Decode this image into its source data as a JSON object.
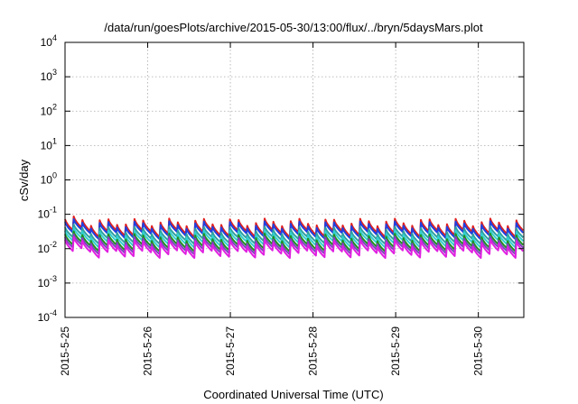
{
  "chart_data": {
    "type": "line",
    "title": "/data/run/goesPlots/archive/2015-05-30/13:00/flux/../bryn/5daysMars.plot",
    "xlabel": "Coordinated Universal Time (UTC)",
    "ylabel": "cSv/day",
    "yscale": "log",
    "ylim": [
      0.0001,
      10000
    ],
    "xlim": [
      0,
      5.55
    ],
    "x_ticks": [
      {
        "label": "2015-5-25",
        "value": 0
      },
      {
        "label": "2015-5-26",
        "value": 1
      },
      {
        "label": "2015-5-27",
        "value": 2
      },
      {
        "label": "2015-5-28",
        "value": 3
      },
      {
        "label": "2015-5-29",
        "value": 4
      },
      {
        "label": "2015-5-30",
        "value": 5
      }
    ],
    "y_ticks": [
      {
        "base": "10",
        "exp": "-4",
        "value": 0.0001
      },
      {
        "base": "10",
        "exp": "-3",
        "value": 0.001
      },
      {
        "base": "10",
        "exp": "-2",
        "value": 0.01
      },
      {
        "base": "10",
        "exp": "-1",
        "value": 0.1
      },
      {
        "base": "10",
        "exp": "0",
        "value": 1
      },
      {
        "base": "10",
        "exp": "1",
        "value": 10
      },
      {
        "base": "10",
        "exp": "2",
        "value": 100
      },
      {
        "base": "10",
        "exp": "3",
        "value": 1000
      },
      {
        "base": "10",
        "exp": "4",
        "value": 10000
      }
    ],
    "grid": true,
    "cycle_period_days": 0.105,
    "series": [
      {
        "color": "#e02020",
        "peak": 0.06,
        "base": 0.03
      },
      {
        "color": "#2040e0",
        "peak": 0.05,
        "base": 0.026
      },
      {
        "color": "#30a0a0",
        "peak": 0.035,
        "base": 0.019
      },
      {
        "color": "#30d0d0",
        "peak": 0.028,
        "base": 0.015
      },
      {
        "color": "#209020",
        "peak": 0.022,
        "base": 0.0115
      },
      {
        "color": "#8040c0",
        "peak": 0.018,
        "base": 0.0095
      },
      {
        "color": "#e020e0",
        "peak": 0.015,
        "base": 0.0075
      }
    ]
  }
}
